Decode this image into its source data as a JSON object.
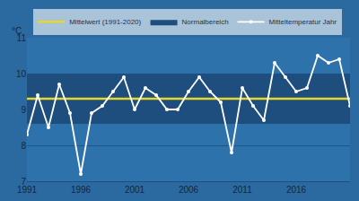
{
  "chart_data": {
    "type": "line",
    "y_label": "°C",
    "x": [
      1991,
      1992,
      1993,
      1994,
      1995,
      1996,
      1997,
      1998,
      1999,
      2000,
      2001,
      2002,
      2003,
      2004,
      2005,
      2006,
      2007,
      2008,
      2009,
      2010,
      2011,
      2012,
      2013,
      2014,
      2015,
      2016,
      2017,
      2018,
      2019,
      2020,
      2021
    ],
    "series": [
      {
        "name": "Mitteltemperatur Jahr",
        "color": "#ffffff",
        "marker": "circle",
        "values": [
          8.3,
          9.4,
          8.5,
          9.7,
          8.9,
          7.2,
          8.9,
          9.1,
          9.5,
          9.9,
          9.0,
          9.6,
          9.4,
          9.0,
          9.0,
          9.5,
          9.9,
          9.5,
          9.2,
          7.8,
          9.6,
          9.1,
          8.7,
          10.3,
          9.9,
          9.5,
          9.6,
          10.5,
          10.3,
          10.4,
          9.1
        ]
      }
    ],
    "mean": {
      "name": "Mittelwert (1991-2020)",
      "value": 9.3,
      "color": "#e8d62a"
    },
    "normal_range": {
      "name": "Normalbereich",
      "low": 8.6,
      "high": 10.0,
      "color": "#1d4e7e"
    },
    "xlim": [
      1991,
      2021
    ],
    "xticks": [
      1991,
      1996,
      2001,
      2006,
      2011,
      2016
    ],
    "ylim": [
      7,
      11
    ],
    "yticks": [
      7,
      8,
      9,
      10,
      11
    ],
    "grid": true,
    "legend": "top"
  }
}
